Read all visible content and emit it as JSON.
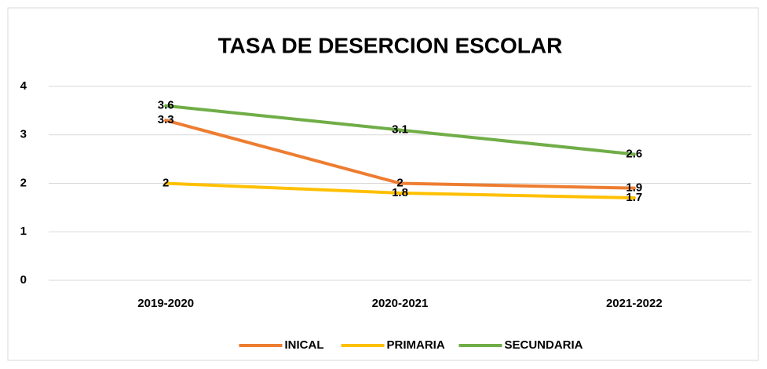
{
  "chart_data": {
    "type": "line",
    "title": "TASA DE DESERCION ESCOLAR",
    "categories": [
      "2019-2020",
      "2020-2021",
      "2021-2022"
    ],
    "series": [
      {
        "name": "INICAL",
        "color": "#ed7d31",
        "values": [
          3.3,
          2,
          1.9
        ]
      },
      {
        "name": "PRIMARIA",
        "color": "#ffc000",
        "values": [
          2,
          1.8,
          1.7
        ]
      },
      {
        "name": "SECUNDARIA",
        "color": "#70ad47",
        "values": [
          3.6,
          3.1,
          2.6
        ]
      }
    ],
    "ylim": [
      0,
      4
    ],
    "yticks": [
      0,
      1,
      2,
      3,
      4
    ],
    "grid": true,
    "legend": "bottom"
  }
}
